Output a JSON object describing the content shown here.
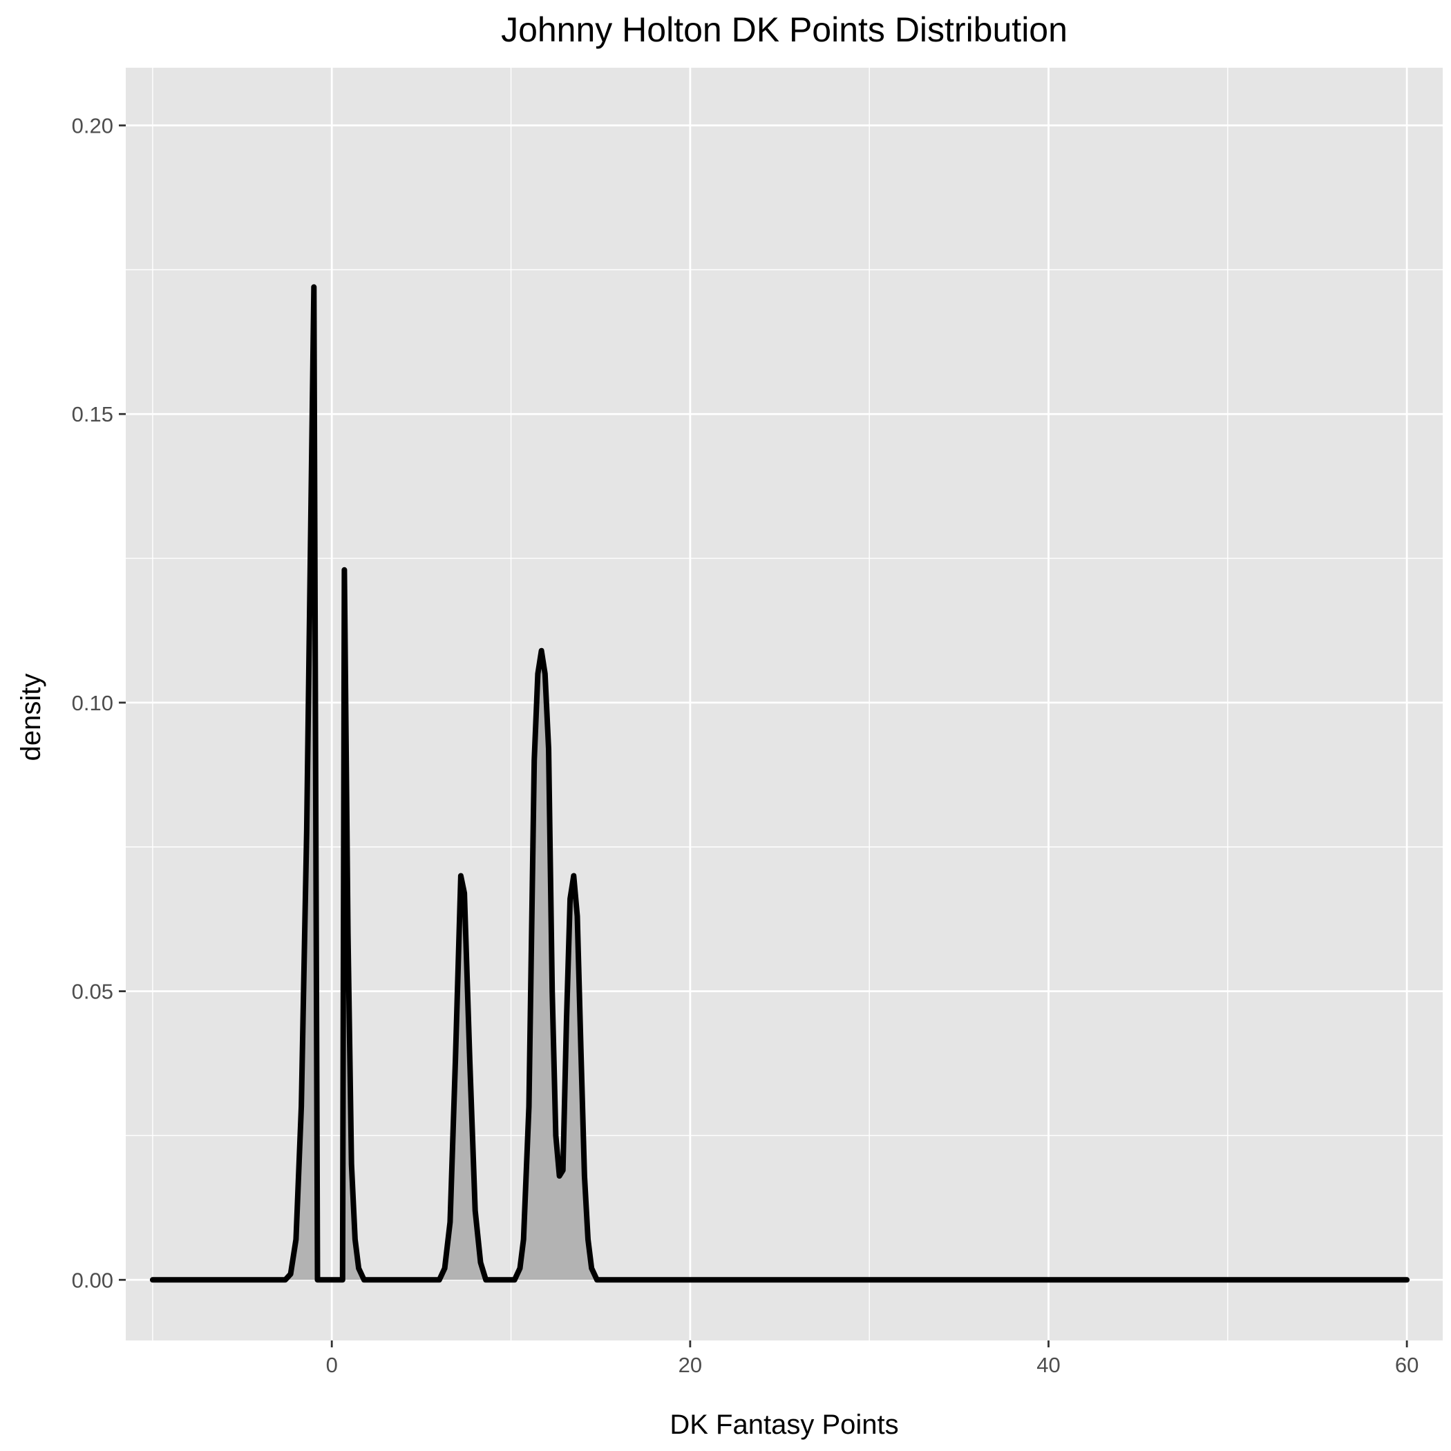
{
  "chart_data": {
    "type": "area",
    "title": "Johnny Holton DK Points Distribution",
    "xlabel": "DK Fantasy Points",
    "ylabel": "density",
    "xlim": [
      -11.5,
      62
    ],
    "ylim": [
      -0.0105,
      0.21
    ],
    "x_ticks": [
      0,
      20,
      40,
      60
    ],
    "x_tick_labels": [
      "0",
      "20",
      "40",
      "60"
    ],
    "y_ticks": [
      0,
      0.05,
      0.1,
      0.15,
      0.2
    ],
    "y_tick_labels": [
      "0.00",
      "0.05",
      "0.10",
      "0.15",
      "0.20"
    ],
    "x_minor_gridlines": [
      -10,
      10,
      30,
      50
    ],
    "y_minor_gridlines": [
      0.025,
      0.075,
      0.125,
      0.175
    ],
    "grid": true,
    "legend": "none",
    "colors": {
      "panel_background": "#e5e5e5",
      "gridline": "#ffffff",
      "fill": "#b3b3b3",
      "line": "#000000",
      "tick": "#333333",
      "tick_label": "#4d4d4d"
    },
    "series": [
      {
        "points": [
          [
            -10,
            0
          ],
          [
            -2.6,
            0
          ],
          [
            -2.3,
            0.001
          ],
          [
            -2.0,
            0.007
          ],
          [
            -1.7,
            0.03
          ],
          [
            -1.4,
            0.078
          ],
          [
            -1.0,
            0.172
          ],
          [
            -0.8,
            0
          ],
          [
            0.6,
            0
          ],
          [
            0.7,
            0.123
          ],
          [
            0.9,
            0.06
          ],
          [
            1.1,
            0.02
          ],
          [
            1.3,
            0.007
          ],
          [
            1.5,
            0.002
          ],
          [
            1.8,
            0
          ],
          [
            6.0,
            0
          ],
          [
            6.3,
            0.002
          ],
          [
            6.6,
            0.01
          ],
          [
            6.9,
            0.038
          ],
          [
            7.2,
            0.07
          ],
          [
            7.4,
            0.067
          ],
          [
            7.7,
            0.038
          ],
          [
            8.0,
            0.012
          ],
          [
            8.3,
            0.003
          ],
          [
            8.6,
            0
          ],
          [
            10.2,
            0
          ],
          [
            10.5,
            0.002
          ],
          [
            10.7,
            0.007
          ],
          [
            11.0,
            0.03
          ],
          [
            11.3,
            0.09
          ],
          [
            11.5,
            0.105
          ],
          [
            11.7,
            0.109
          ],
          [
            11.9,
            0.105
          ],
          [
            12.1,
            0.092
          ],
          [
            12.3,
            0.05
          ],
          [
            12.5,
            0.025
          ],
          [
            12.7,
            0.018
          ],
          [
            12.9,
            0.019
          ],
          [
            13.1,
            0.045
          ],
          [
            13.3,
            0.066
          ],
          [
            13.5,
            0.07
          ],
          [
            13.7,
            0.063
          ],
          [
            13.9,
            0.04
          ],
          [
            14.1,
            0.018
          ],
          [
            14.3,
            0.007
          ],
          [
            14.5,
            0.002
          ],
          [
            14.8,
            0
          ],
          [
            60,
            0
          ]
        ]
      }
    ]
  }
}
